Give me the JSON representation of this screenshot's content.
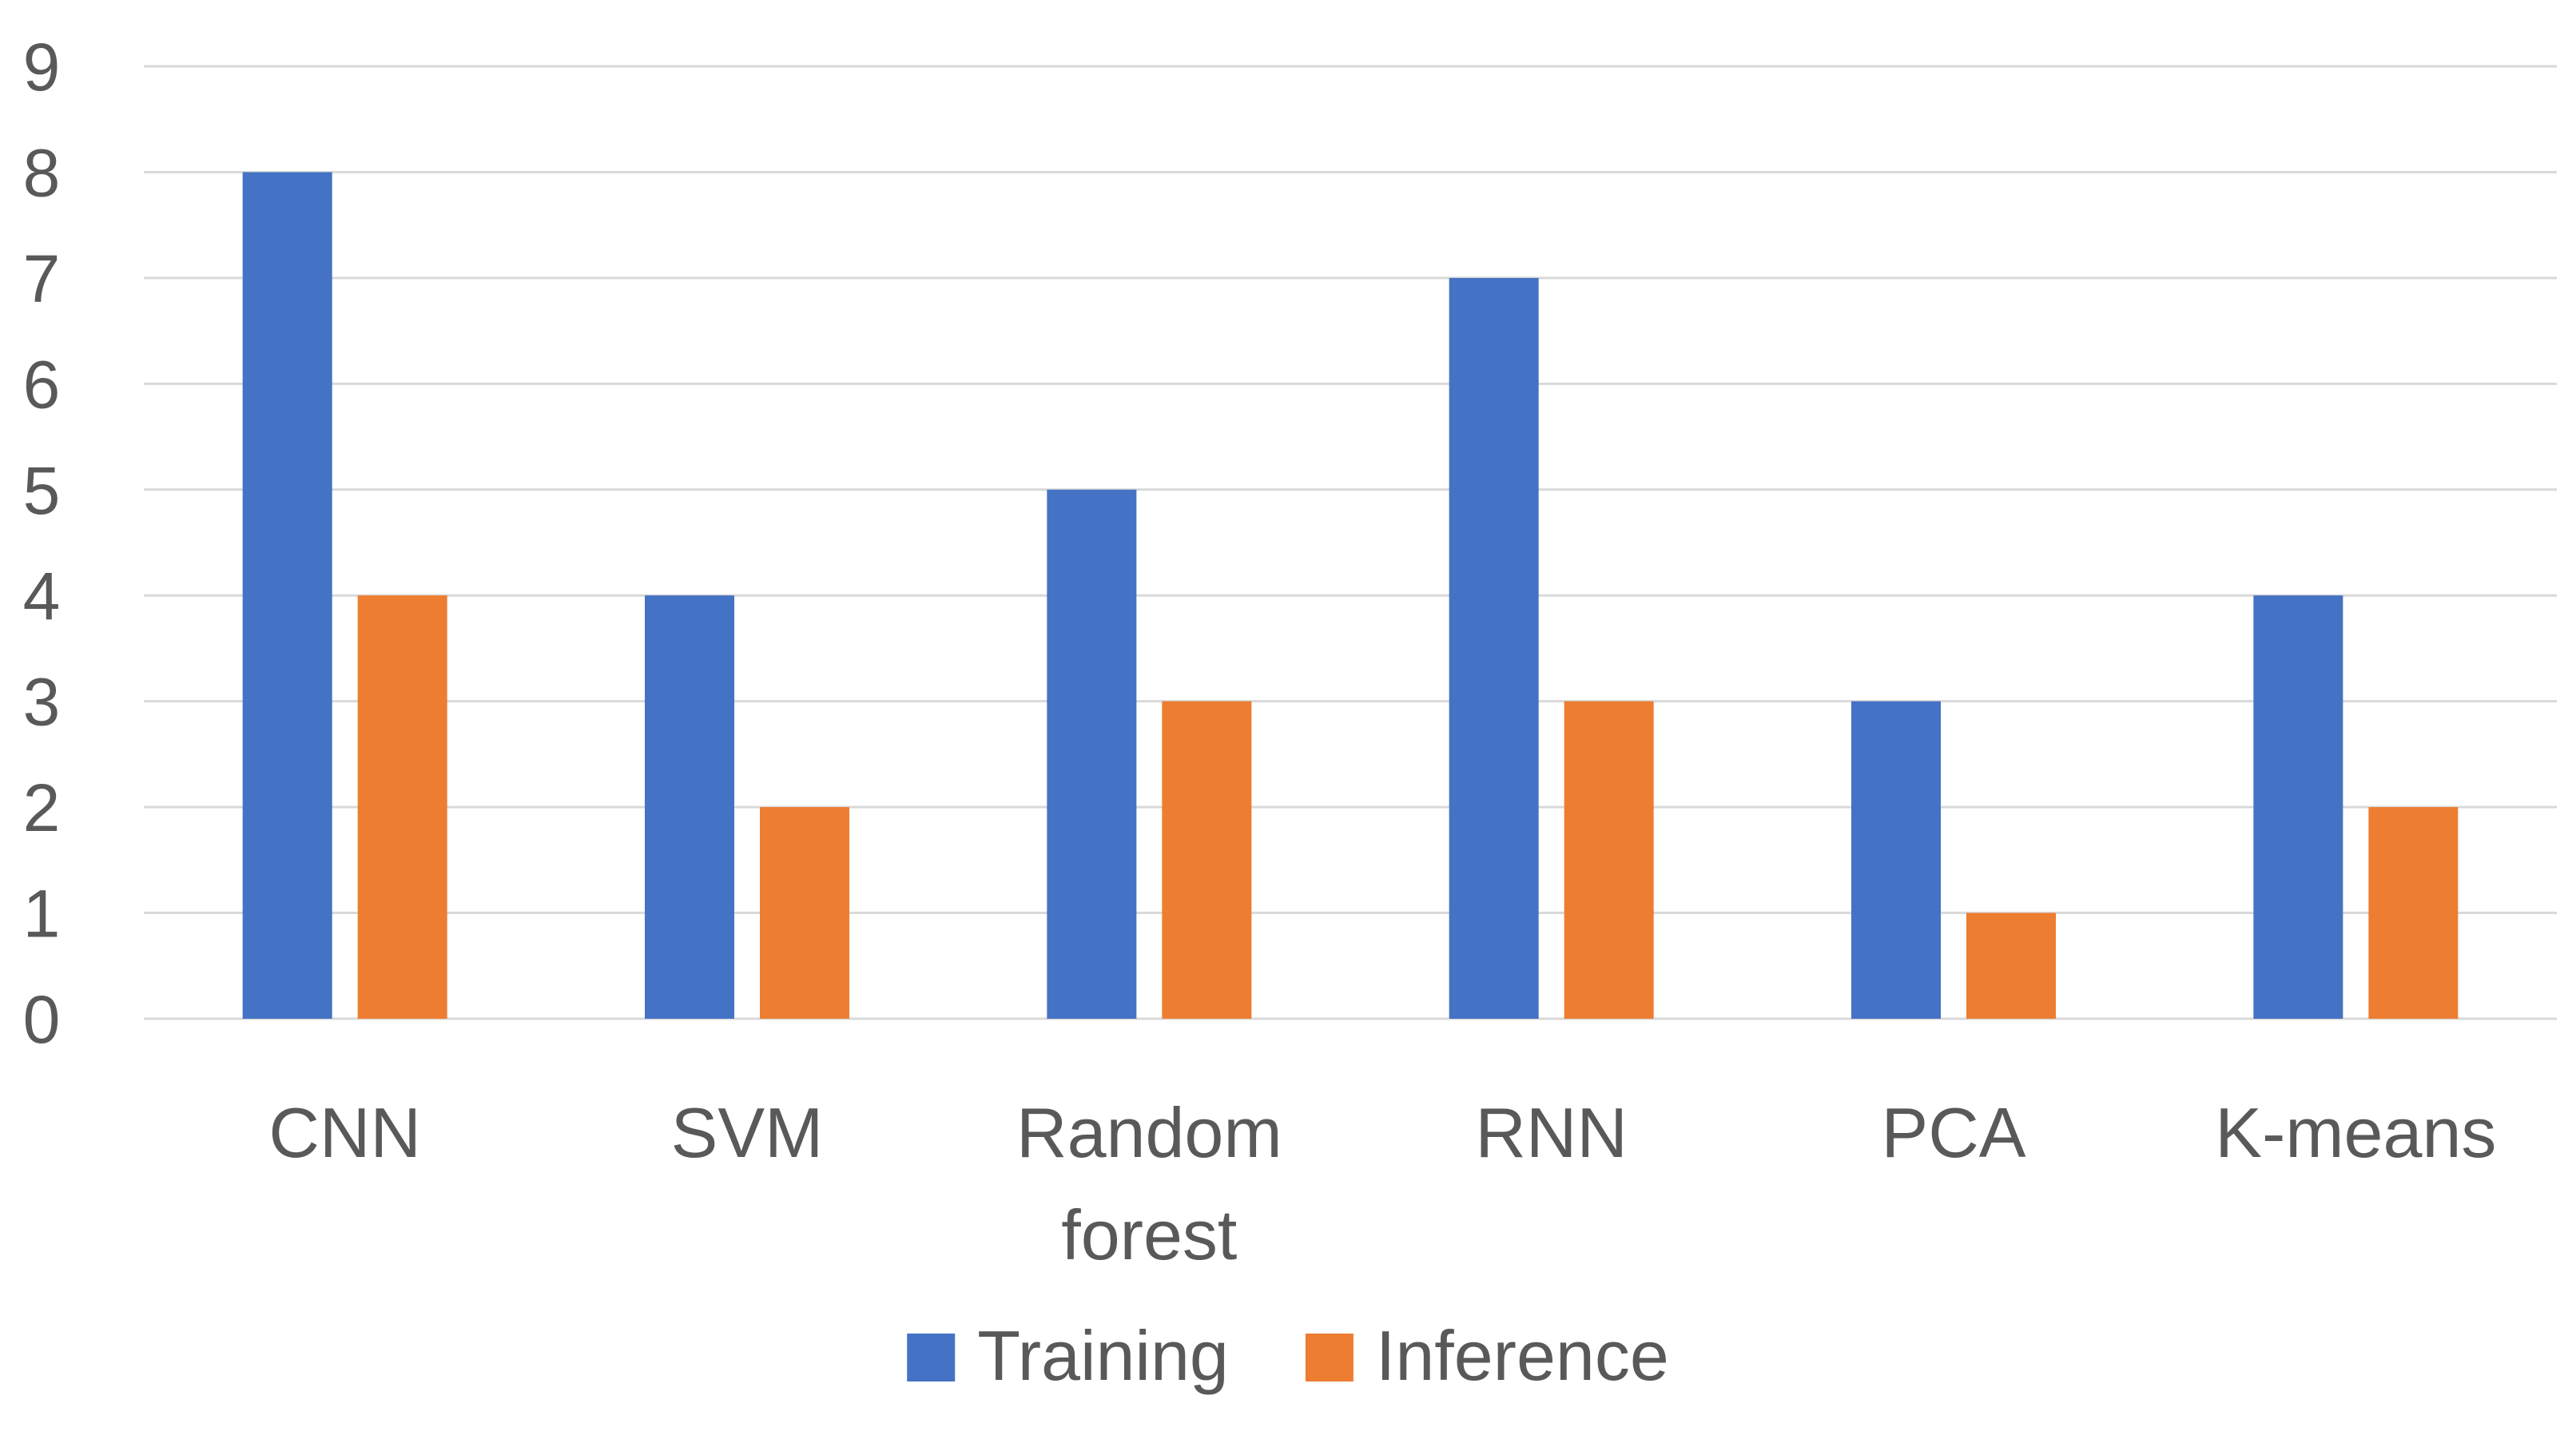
{
  "chart_data": {
    "type": "bar",
    "title": "",
    "xlabel": "",
    "ylabel": "",
    "categories": [
      "CNN",
      "SVM",
      "Random forest",
      "RNN",
      "PCA",
      "K-means"
    ],
    "category_lines": [
      [
        "CNN"
      ],
      [
        "SVM"
      ],
      [
        "Random",
        "forest"
      ],
      [
        "RNN"
      ],
      [
        "PCA"
      ],
      [
        "K-means"
      ]
    ],
    "series": [
      {
        "name": "Training",
        "color": "#4472c4",
        "values": [
          8,
          4,
          5,
          7,
          3,
          4
        ]
      },
      {
        "name": "Inference",
        "color": "#ed7d31",
        "values": [
          4,
          2,
          3,
          3,
          1,
          2
        ]
      }
    ],
    "ylim": [
      0,
      9
    ],
    "yticks": [
      0,
      1,
      2,
      3,
      4,
      5,
      6,
      7,
      8,
      9
    ],
    "grid": true,
    "legend_position": "bottom-center"
  }
}
